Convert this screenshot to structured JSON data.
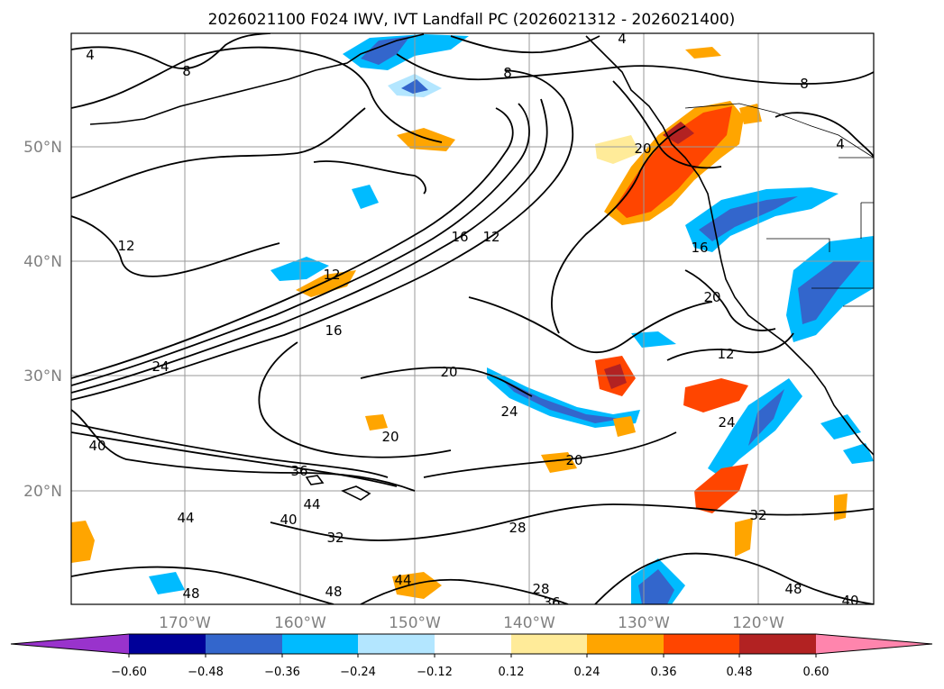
{
  "title": "2026021100 F024 IWV, IVT Landfall PC (2026021312 - 2026021400)",
  "lat_labels": [
    "50°N",
    "40°N",
    "30°N",
    "20°N"
  ],
  "lon_labels": [
    "170°W",
    "160°W",
    "150°W",
    "140°W",
    "130°W",
    "120°W"
  ],
  "colorbar": {
    "colors": [
      "#9933cc",
      "#000099",
      "#3366cc",
      "#00bbff",
      "#b3e6ff",
      "#ffffff",
      "#ffeb99",
      "#ffa500",
      "#ff4500",
      "#b22222",
      "#ff85ad"
    ],
    "ticks": [
      "−0.60",
      "−0.48",
      "−0.36",
      "−0.24",
      "−0.12",
      "0.12",
      "0.24",
      "0.36",
      "0.48",
      "0.60"
    ]
  },
  "contour_labels": [
    "4",
    "8",
    "8",
    "8",
    "4",
    "4",
    "12",
    "12",
    "16",
    "12",
    "16",
    "20",
    "16",
    "20",
    "12",
    "24",
    "20",
    "20",
    "24",
    "20",
    "24",
    "40",
    "36",
    "44",
    "44",
    "40",
    "32",
    "28",
    "32",
    "48",
    "48",
    "28",
    "36",
    "44",
    "48",
    "40"
  ]
}
